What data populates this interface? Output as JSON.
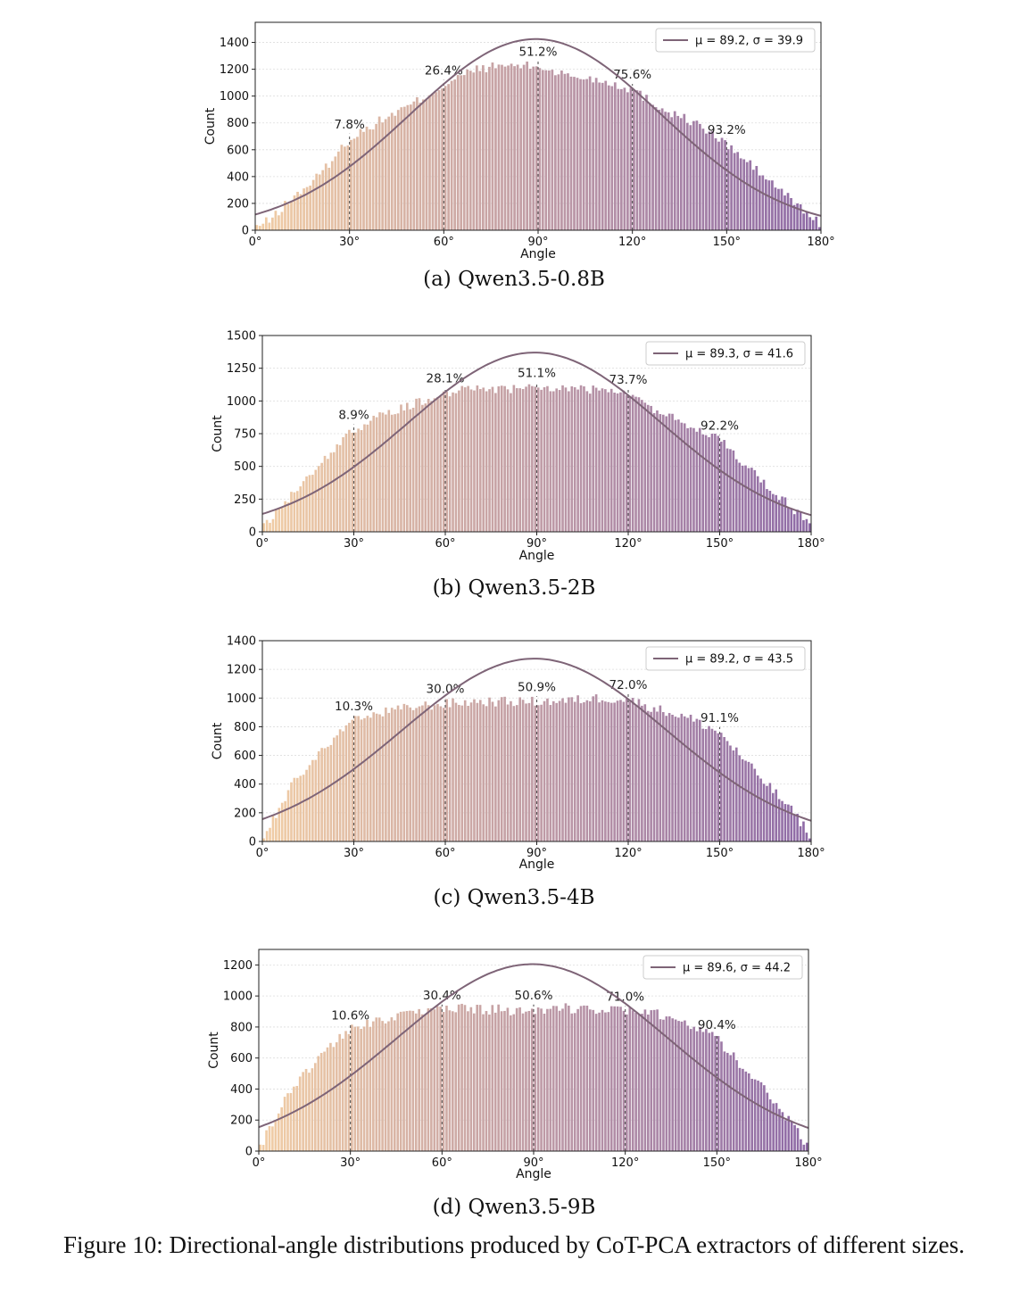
{
  "figure_caption": "Figure 10: Directional-angle distributions produced by CoT-PCA extractors of different sizes.",
  "colors": {
    "bar_start": "#f1cda5",
    "bar_end": "#8e6aa6",
    "curve": "#7e6477",
    "marker_line": "#555555",
    "grid": "#dddddd"
  },
  "chart_data": [
    {
      "type": "bar",
      "caption": "(a) Qwen3.5-0.8B",
      "xlabel": "Angle",
      "ylabel": "Count",
      "xlim": [
        0,
        180
      ],
      "ylim": [
        0,
        1550
      ],
      "yticks": [
        0,
        200,
        400,
        600,
        800,
        1000,
        1200,
        1400
      ],
      "xticks": [
        "0°",
        "30°",
        "60°",
        "90°",
        "120°",
        "150°",
        "180°"
      ],
      "legend": "μ = 89.2, σ = 39.9",
      "legend_position": "top-right",
      "fit": {
        "mu": 89.2,
        "sigma": 39.9,
        "peak": 1425
      },
      "markers": [
        {
          "x": 30,
          "label": "7.8%"
        },
        {
          "x": 60,
          "label": "26.4%"
        },
        {
          "x": 90,
          "label": "51.2%"
        },
        {
          "x": 120,
          "label": "75.6%"
        },
        {
          "x": 150,
          "label": "93.2%"
        }
      ],
      "bar_profile": {
        "x": [
          0,
          5,
          10,
          20,
          30,
          40,
          50,
          60,
          70,
          80,
          90,
          100,
          110,
          120,
          130,
          140,
          150,
          160,
          170,
          175,
          180
        ],
        "y": [
          20,
          80,
          200,
          400,
          680,
          820,
          940,
          1080,
          1200,
          1230,
          1220,
          1150,
          1120,
          1050,
          900,
          800,
          640,
          440,
          240,
          140,
          40
        ]
      }
    },
    {
      "type": "bar",
      "caption": "(b) Qwen3.5-2B",
      "xlabel": "Angle",
      "ylabel": "Count",
      "xlim": [
        0,
        180
      ],
      "ylim": [
        0,
        1500
      ],
      "yticks": [
        0,
        250,
        500,
        750,
        1000,
        1250,
        1500
      ],
      "xticks": [
        "0°",
        "30°",
        "60°",
        "90°",
        "120°",
        "150°",
        "180°"
      ],
      "legend": "μ = 89.3, σ = 41.6",
      "legend_position": "top-right",
      "fit": {
        "mu": 89.3,
        "sigma": 41.6,
        "peak": 1370
      },
      "markers": [
        {
          "x": 30,
          "label": "8.9%"
        },
        {
          "x": 60,
          "label": "28.1%"
        },
        {
          "x": 90,
          "label": "51.1%"
        },
        {
          "x": 120,
          "label": "73.7%"
        },
        {
          "x": 150,
          "label": "92.2%"
        }
      ],
      "bar_profile": {
        "x": [
          0,
          5,
          10,
          20,
          30,
          40,
          50,
          60,
          70,
          80,
          90,
          100,
          110,
          120,
          130,
          140,
          150,
          160,
          170,
          175,
          180
        ],
        "y": [
          20,
          150,
          300,
          550,
          780,
          900,
          980,
          1060,
          1100,
          1090,
          1100,
          1100,
          1080,
          1050,
          920,
          820,
          700,
          480,
          260,
          160,
          40
        ]
      }
    },
    {
      "type": "bar",
      "caption": "(c) Qwen3.5-4B",
      "xlabel": "Angle",
      "ylabel": "Count",
      "xlim": [
        0,
        180
      ],
      "ylim": [
        0,
        1400
      ],
      "yticks": [
        0,
        200,
        400,
        600,
        800,
        1000,
        1200,
        1400
      ],
      "xticks": [
        "0°",
        "30°",
        "60°",
        "90°",
        "120°",
        "150°",
        "180°"
      ],
      "legend": "μ = 89.2, σ = 43.5",
      "legend_position": "top-right",
      "fit": {
        "mu": 89.2,
        "sigma": 43.5,
        "peak": 1275
      },
      "markers": [
        {
          "x": 30,
          "label": "10.3%"
        },
        {
          "x": 60,
          "label": "30.0%"
        },
        {
          "x": 90,
          "label": "50.9%"
        },
        {
          "x": 120,
          "label": "72.0%"
        },
        {
          "x": 150,
          "label": "91.1%"
        }
      ],
      "bar_profile": {
        "x": [
          0,
          5,
          10,
          20,
          30,
          40,
          50,
          60,
          70,
          80,
          90,
          100,
          110,
          120,
          130,
          140,
          150,
          160,
          170,
          175,
          180
        ],
        "y": [
          20,
          200,
          400,
          650,
          840,
          900,
          940,
          960,
          975,
          975,
          975,
          980,
          1000,
          990,
          920,
          860,
          760,
          520,
          300,
          180,
          40
        ]
      }
    },
    {
      "type": "bar",
      "caption": "(d) Qwen3.5-9B",
      "xlabel": "Angle",
      "ylabel": "Count",
      "xlim": [
        0,
        180
      ],
      "ylim": [
        0,
        1300
      ],
      "yticks": [
        0,
        200,
        400,
        600,
        800,
        1000,
        1200
      ],
      "xticks": [
        "0°",
        "30°",
        "60°",
        "90°",
        "120°",
        "150°",
        "180°"
      ],
      "legend": "μ = 89.6, σ = 44.2",
      "legend_position": "top-right",
      "fit": {
        "mu": 89.6,
        "sigma": 44.2,
        "peak": 1205
      },
      "markers": [
        {
          "x": 30,
          "label": "10.6%"
        },
        {
          "x": 60,
          "label": "30.4%"
        },
        {
          "x": 90,
          "label": "50.6%"
        },
        {
          "x": 120,
          "label": "71.0%"
        },
        {
          "x": 150,
          "label": "90.4%"
        }
      ],
      "bar_profile": {
        "x": [
          0,
          5,
          10,
          20,
          30,
          40,
          50,
          60,
          70,
          80,
          90,
          100,
          110,
          120,
          130,
          140,
          150,
          160,
          170,
          175,
          180
        ],
        "y": [
          20,
          200,
          380,
          620,
          780,
          850,
          880,
          910,
          920,
          910,
          910,
          920,
          920,
          900,
          880,
          840,
          720,
          520,
          300,
          150,
          40
        ]
      }
    }
  ]
}
